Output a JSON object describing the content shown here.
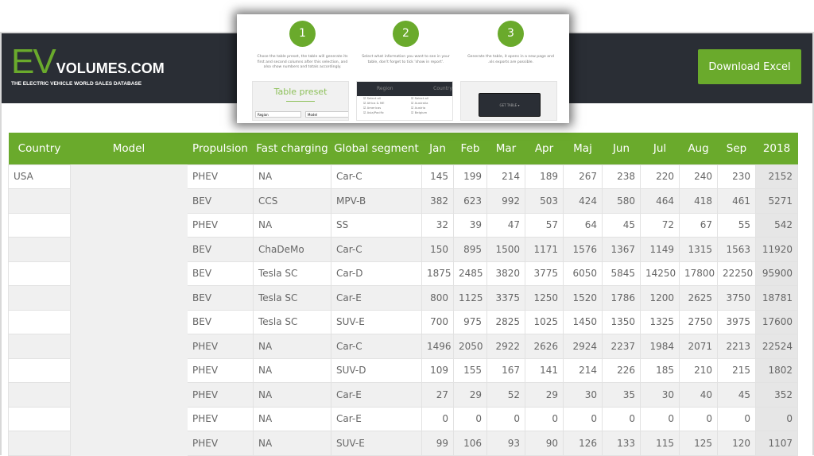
{
  "header": {
    "logo_ev": "EV",
    "logo_volumes": "VOLUMES.COM",
    "tagline": "THE ELECTRIC VEHICLE WORLD SALES DATABASE",
    "download_label": "Download Excel"
  },
  "colors": {
    "accent": "#6aaa2c",
    "header_bg": "#2a2e35"
  },
  "popup": {
    "steps": [
      {
        "number": "1",
        "text": "Chose the table preset, the table will generate its first and second columns after this selection, and also show numbers and totals accordingly."
      },
      {
        "number": "2",
        "text": "Select what information you want to see in your table, don't forget to tick 'show in report'."
      },
      {
        "number": "3",
        "text": "Generate the table, it opens in a new page and .xls exports are possible."
      }
    ],
    "preset_title": "Table preset",
    "preset_select_1": "Region",
    "preset_select_2": "Model",
    "col_region": "Region",
    "col_country": "Country",
    "region_items": [
      "Select all",
      "Africa & ME",
      "Americas",
      "Asia/Pacific"
    ],
    "country_items": [
      "Select all",
      "Australia",
      "Austria",
      "Belgium"
    ],
    "get_table": "GET TABLE"
  },
  "table": {
    "columns": [
      "Country",
      "Model",
      "Propulsion",
      "Fast charging",
      "Global segment",
      "Jan",
      "Feb",
      "Mar",
      "Apr",
      "Maj",
      "Jun",
      "Jul",
      "Aug",
      "Sep",
      "2018"
    ],
    "rows": [
      [
        "USA",
        "",
        "PHEV",
        "NA",
        "Car-C",
        145,
        199,
        214,
        189,
        267,
        238,
        220,
        240,
        230,
        2152
      ],
      [
        "",
        "",
        "BEV",
        "CCS",
        "MPV-B",
        382,
        623,
        992,
        503,
        424,
        580,
        464,
        418,
        461,
        5271
      ],
      [
        "",
        "",
        "PHEV",
        "NA",
        "SS",
        32,
        39,
        47,
        57,
        64,
        45,
        72,
        67,
        55,
        542
      ],
      [
        "",
        "",
        "BEV",
        "ChaDeMo",
        "Car-C",
        150,
        895,
        1500,
        1171,
        1576,
        1367,
        1149,
        1315,
        1563,
        11920
      ],
      [
        "",
        "",
        "BEV",
        "Tesla SC",
        "Car-D",
        1875,
        2485,
        3820,
        3775,
        6050,
        5845,
        14250,
        17800,
        22250,
        95900
      ],
      [
        "",
        "",
        "BEV",
        "Tesla SC",
        "Car-E",
        800,
        1125,
        3375,
        1250,
        1520,
        1786,
        1200,
        2625,
        3750,
        18781
      ],
      [
        "",
        "",
        "BEV",
        "Tesla SC",
        "SUV-E",
        700,
        975,
        2825,
        1025,
        1450,
        1350,
        1325,
        2750,
        3975,
        17600
      ],
      [
        "",
        "",
        "PHEV",
        "NA",
        "Car-C",
        1496,
        2050,
        2922,
        2626,
        2924,
        2237,
        1984,
        2071,
        2213,
        22524
      ],
      [
        "",
        "",
        "PHEV",
        "NA",
        "SUV-D",
        109,
        155,
        167,
        141,
        214,
        226,
        185,
        210,
        215,
        1802
      ],
      [
        "",
        "",
        "PHEV",
        "NA",
        "Car-E",
        27,
        29,
        52,
        29,
        30,
        35,
        30,
        40,
        45,
        352
      ],
      [
        "",
        "",
        "PHEV",
        "NA",
        "Car-E",
        0,
        0,
        0,
        0,
        0,
        0,
        0,
        0,
        0,
        0
      ],
      [
        "",
        "",
        "PHEV",
        "NA",
        "SUV-E",
        99,
        106,
        93,
        90,
        126,
        133,
        115,
        125,
        120,
        1107
      ]
    ]
  }
}
